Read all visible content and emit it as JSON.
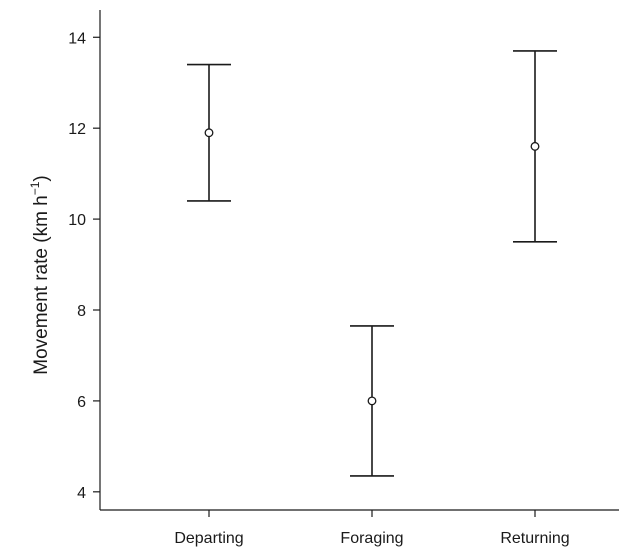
{
  "chart_data": {
    "type": "scatter",
    "title": "",
    "xlabel": "",
    "ylabel": "Movement rate (km h",
    "ylabel_sup": "−1",
    "ylabel_close": ")",
    "ylim": [
      3.6,
      14.6
    ],
    "yticks": [
      4,
      6,
      8,
      10,
      12,
      14
    ],
    "categories": [
      "Departing",
      "Foraging",
      "Returning"
    ],
    "series": [
      {
        "values": [
          11.9,
          6.0,
          11.6
        ],
        "lower": [
          10.4,
          4.35,
          9.5
        ],
        "upper": [
          13.4,
          7.65,
          13.7
        ]
      }
    ],
    "grid": false,
    "legend": "none"
  }
}
